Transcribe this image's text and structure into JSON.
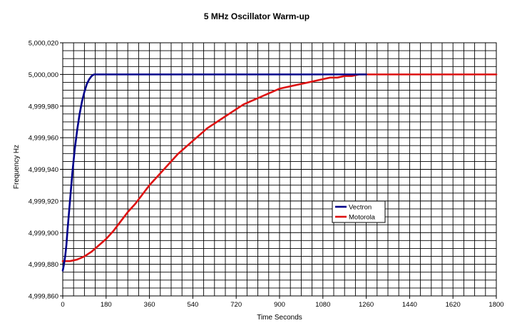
{
  "chart_data": {
    "type": "line",
    "title": "5 MHz Oscillator Warm-up",
    "xlabel": "Time Seconds",
    "ylabel": "Frequency Hz",
    "xlim": [
      0,
      1800
    ],
    "ylim": [
      4999860,
      5000020
    ],
    "x_ticks": [
      0,
      180,
      360,
      540,
      720,
      900,
      1080,
      1260,
      1440,
      1620,
      1800
    ],
    "x_tick_labels": [
      "0",
      "180",
      "360",
      "540",
      "720",
      "900",
      "1080",
      "1260",
      "1440",
      "1620",
      "1800"
    ],
    "y_ticks": [
      4999860,
      4999880,
      4999900,
      4999920,
      4999940,
      4999960,
      4999980,
      5000000,
      5000020
    ],
    "y_tick_labels": [
      "4,999,860",
      "4,999,880",
      "4,999,900",
      "4,999,920",
      "4,999,940",
      "4,999,960",
      "4,999,980",
      "5,000,000",
      "5,000,020"
    ],
    "grid": true,
    "x_minor_step": 45,
    "y_minor_step": 5,
    "legend_position": "lower-right",
    "series": [
      {
        "name": "Vectron",
        "color": "#00008B",
        "x": [
          0,
          5,
          10,
          15,
          20,
          30,
          40,
          50,
          60,
          70,
          80,
          90,
          100,
          110,
          120,
          130,
          140,
          150,
          160,
          180,
          300,
          600,
          900,
          1200,
          1260
        ],
        "y": [
          4999876,
          4999880,
          4999885,
          4999892,
          4999902,
          4999920,
          4999938,
          4999953,
          4999965,
          4999975,
          4999983,
          4999989,
          4999994,
          4999997,
          4999999,
          5000000,
          5000000,
          5000000,
          5000000,
          5000000,
          5000000,
          5000000,
          5000000,
          5000000,
          5000000
        ]
      },
      {
        "name": "Motorola",
        "color": "#DD1111",
        "x": [
          0,
          30,
          60,
          90,
          120,
          150,
          180,
          210,
          240,
          270,
          300,
          330,
          360,
          390,
          420,
          450,
          480,
          510,
          540,
          570,
          600,
          630,
          660,
          690,
          720,
          750,
          780,
          810,
          840,
          870,
          900,
          930,
          960,
          990,
          1020,
          1050,
          1080,
          1110,
          1140,
          1170,
          1200,
          1230,
          1260,
          1300,
          1400,
          1500,
          1600,
          1700,
          1800
        ],
        "y": [
          4999882,
          4999882,
          4999883,
          4999885,
          4999888,
          4999892,
          4999896,
          4999901,
          4999907,
          4999913,
          4999918,
          4999924,
          4999930,
          4999935,
          4999940,
          4999945,
          4999950,
          4999954,
          4999958,
          4999962,
          4999966,
          4999969,
          4999972,
          4999975,
          4999978,
          4999981,
          4999983,
          4999985,
          4999987,
          4999989,
          4999991,
          4999992,
          4999993,
          4999994,
          4999995,
          4999996,
          4999997,
          4999998,
          4999998,
          4999999,
          4999999,
          5000000,
          5000000,
          5000000,
          5000000,
          5000000,
          5000000,
          5000000,
          5000000
        ]
      }
    ]
  }
}
